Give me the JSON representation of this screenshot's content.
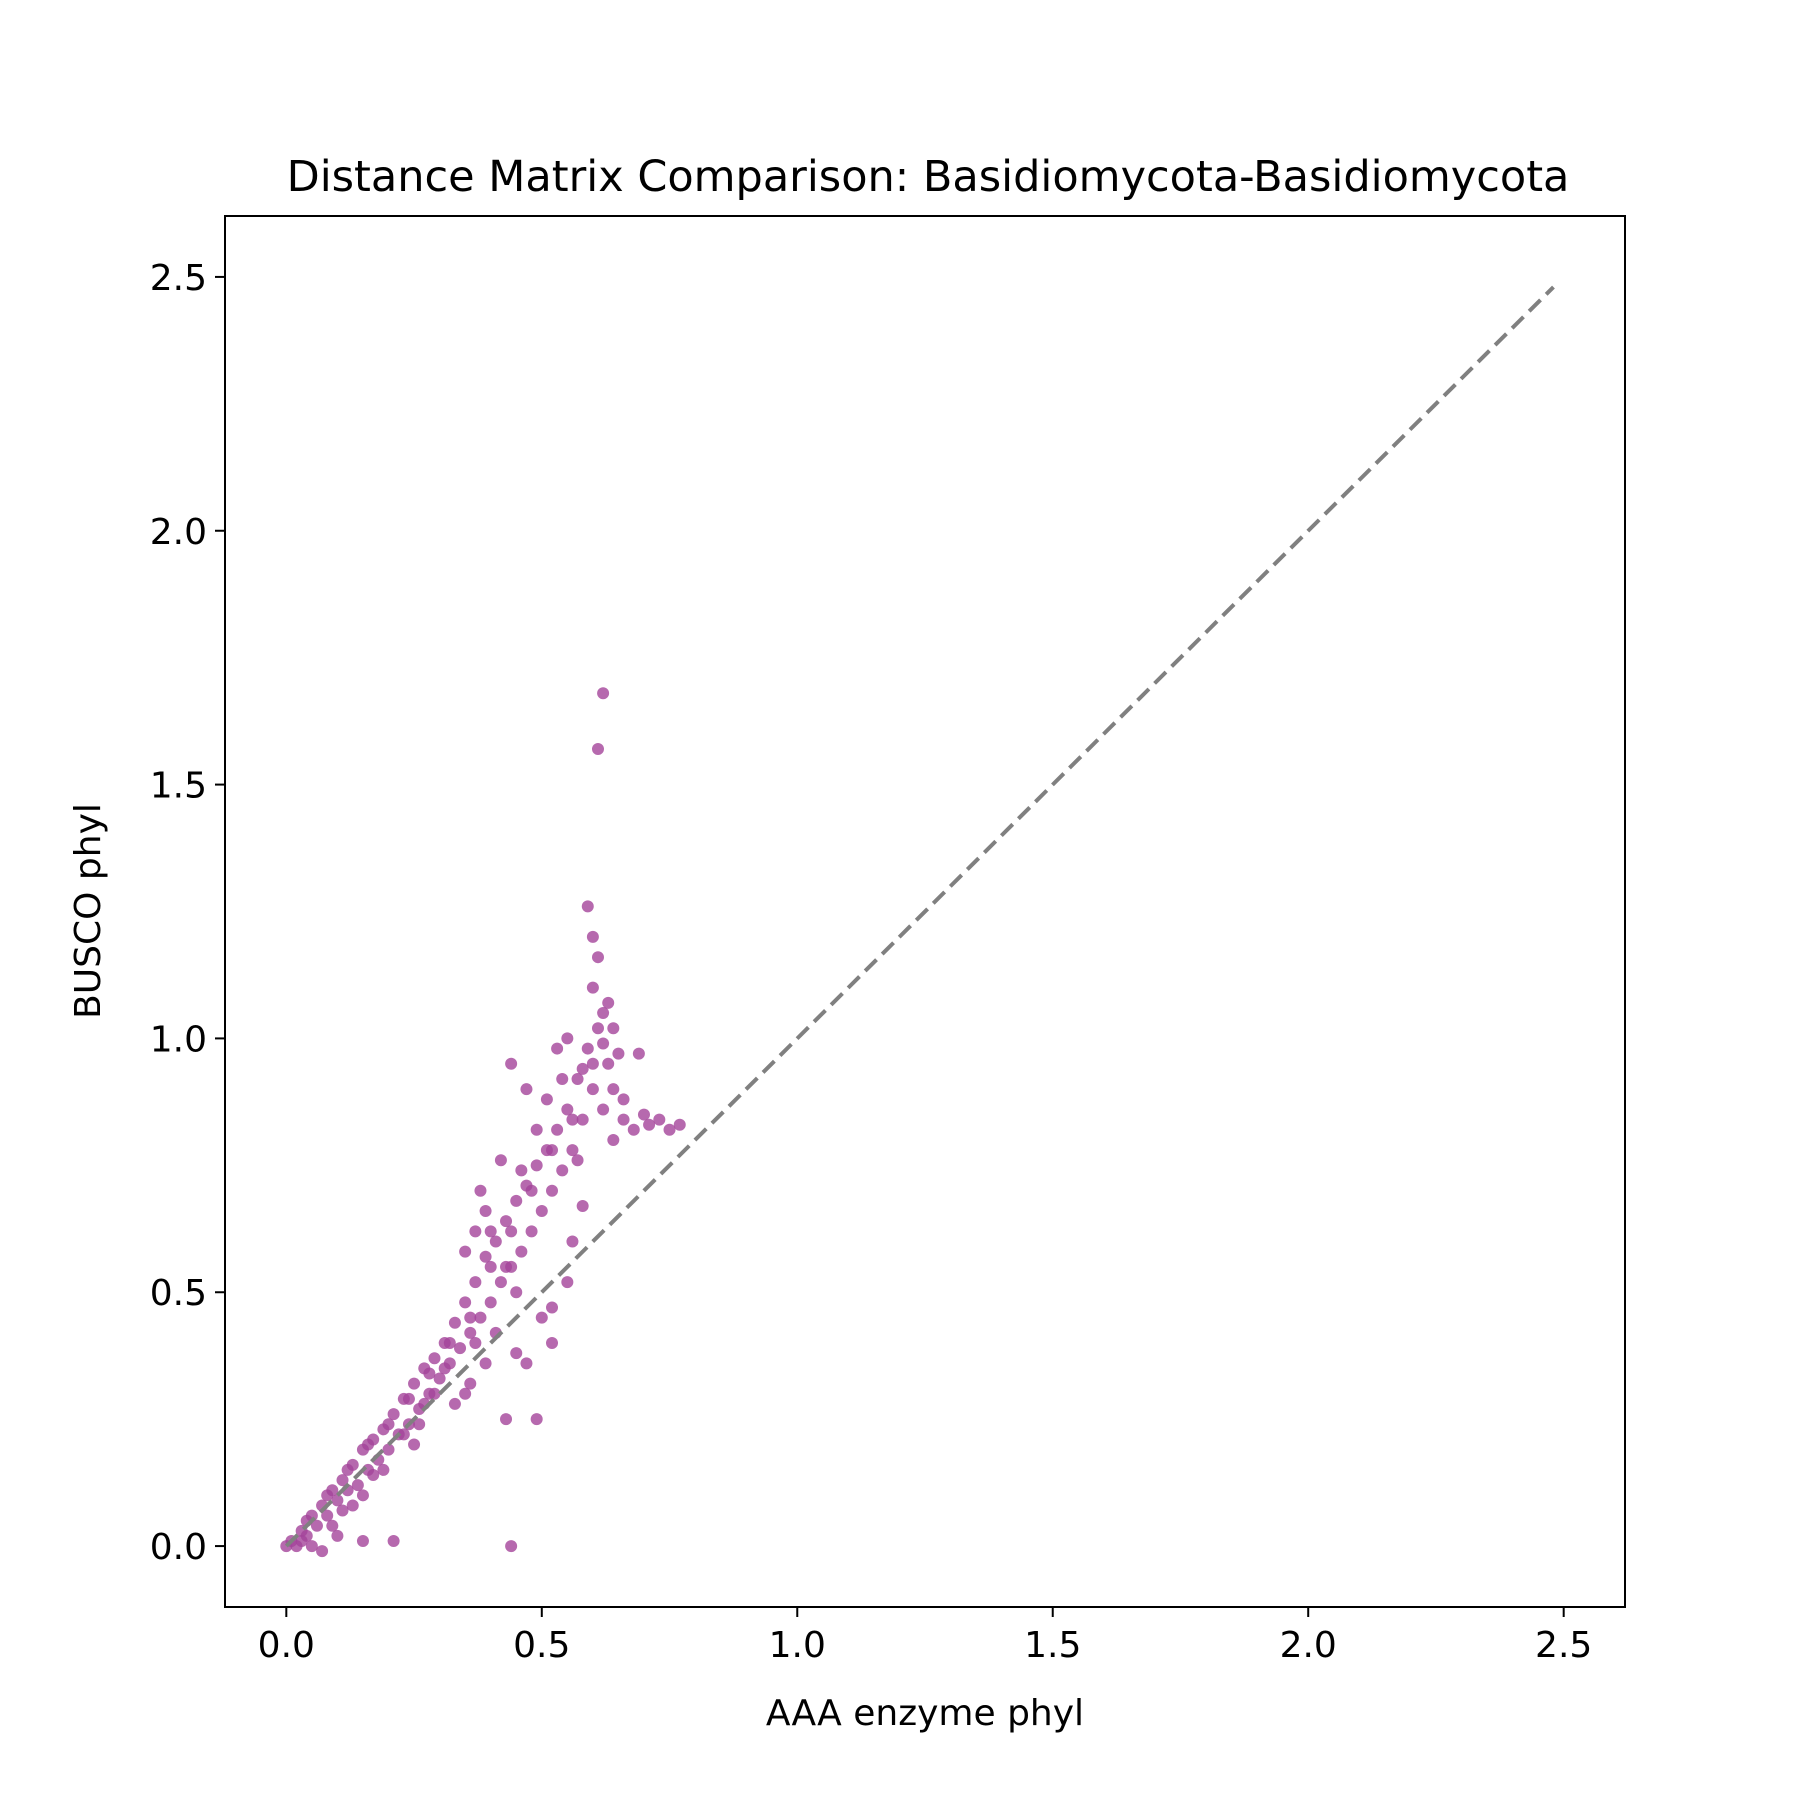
{
  "chart_data": {
    "type": "scatter",
    "title": "Distance Matrix Comparison: Basidiomycota-Basidiomycota",
    "xlabel": "AAA enzyme phyl",
    "ylabel": "BUSCO phyl",
    "xlim": [
      -0.12,
      2.62
    ],
    "ylim": [
      -0.12,
      2.62
    ],
    "xticks": [
      {
        "value": 0.0,
        "label": "0.0"
      },
      {
        "value": 0.5,
        "label": "0.5"
      },
      {
        "value": 1.0,
        "label": "1.0"
      },
      {
        "value": 1.5,
        "label": "1.5"
      },
      {
        "value": 2.0,
        "label": "2.0"
      },
      {
        "value": 2.5,
        "label": "2.5"
      }
    ],
    "yticks": [
      {
        "value": 0.0,
        "label": "0.0"
      },
      {
        "value": 0.5,
        "label": "0.5"
      },
      {
        "value": 1.0,
        "label": "1.0"
      },
      {
        "value": 1.5,
        "label": "1.5"
      },
      {
        "value": 2.0,
        "label": "2.0"
      },
      {
        "value": 2.5,
        "label": "2.5"
      }
    ],
    "grid": false,
    "point_color": "#a4449a",
    "reference_line": {
      "x": [
        0.0,
        2.48
      ],
      "y": [
        0.0,
        2.48
      ],
      "color": "#808080",
      "style": "dashed"
    },
    "series": [
      {
        "points": [
          [
            0.0,
            0.0
          ],
          [
            0.01,
            0.01
          ],
          [
            0.02,
            0.0
          ],
          [
            0.03,
            0.03
          ],
          [
            0.04,
            0.02
          ],
          [
            0.05,
            0.06
          ],
          [
            0.06,
            0.04
          ],
          [
            0.07,
            0.08
          ],
          [
            0.08,
            0.06
          ],
          [
            0.09,
            0.11
          ],
          [
            0.1,
            0.09
          ],
          [
            0.11,
            0.13
          ],
          [
            0.12,
            0.11
          ],
          [
            0.13,
            0.16
          ],
          [
            0.14,
            0.12
          ],
          [
            0.15,
            0.19
          ],
          [
            0.16,
            0.15
          ],
          [
            0.17,
            0.21
          ],
          [
            0.18,
            0.17
          ],
          [
            0.19,
            0.23
          ],
          [
            0.2,
            0.19
          ],
          [
            0.21,
            0.26
          ],
          [
            0.22,
            0.22
          ],
          [
            0.23,
            0.29
          ],
          [
            0.24,
            0.24
          ],
          [
            0.25,
            0.32
          ],
          [
            0.26,
            0.27
          ],
          [
            0.27,
            0.35
          ],
          [
            0.28,
            0.3
          ],
          [
            0.29,
            0.37
          ],
          [
            0.3,
            0.33
          ],
          [
            0.31,
            0.4
          ],
          [
            0.32,
            0.36
          ],
          [
            0.33,
            0.44
          ],
          [
            0.34,
            0.39
          ],
          [
            0.35,
            0.48
          ],
          [
            0.36,
            0.42
          ],
          [
            0.37,
            0.52
          ],
          [
            0.38,
            0.45
          ],
          [
            0.39,
            0.57
          ],
          [
            0.4,
            0.48
          ],
          [
            0.41,
            0.6
          ],
          [
            0.42,
            0.52
          ],
          [
            0.43,
            0.64
          ],
          [
            0.44,
            0.55
          ],
          [
            0.45,
            0.68
          ],
          [
            0.46,
            0.58
          ],
          [
            0.47,
            0.71
          ],
          [
            0.48,
            0.62
          ],
          [
            0.49,
            0.75
          ],
          [
            0.5,
            0.66
          ],
          [
            0.51,
            0.78
          ],
          [
            0.52,
            0.7
          ],
          [
            0.53,
            0.82
          ],
          [
            0.54,
            0.74
          ],
          [
            0.55,
            0.86
          ],
          [
            0.56,
            0.78
          ],
          [
            0.57,
            0.92
          ],
          [
            0.58,
            0.84
          ],
          [
            0.59,
            0.98
          ],
          [
            0.6,
            0.9
          ],
          [
            0.61,
            1.02
          ],
          [
            0.62,
            0.86
          ],
          [
            0.63,
            0.95
          ],
          [
            0.64,
            0.8
          ],
          [
            0.66,
            0.88
          ],
          [
            0.68,
            0.82
          ],
          [
            0.7,
            0.85
          ],
          [
            0.73,
            0.84
          ],
          [
            0.77,
            0.83
          ],
          [
            0.15,
            0.1
          ],
          [
            0.25,
            0.2
          ],
          [
            0.35,
            0.3
          ],
          [
            0.45,
            0.38
          ],
          [
            0.5,
            0.45
          ],
          [
            0.55,
            0.52
          ],
          [
            0.4,
            0.62
          ],
          [
            0.38,
            0.7
          ],
          [
            0.42,
            0.76
          ],
          [
            0.47,
            0.9
          ],
          [
            0.53,
            0.98
          ],
          [
            0.6,
            1.1
          ],
          [
            0.44,
            0.95
          ],
          [
            0.61,
            1.57
          ],
          [
            0.62,
            1.68
          ],
          [
            0.59,
            1.26
          ],
          [
            0.6,
            1.2
          ],
          [
            0.61,
            1.16
          ],
          [
            0.44,
            0.0
          ],
          [
            0.43,
            0.25
          ],
          [
            0.49,
            0.25
          ],
          [
            0.65,
            0.97
          ],
          [
            0.69,
            0.97
          ],
          [
            0.21,
            0.01
          ],
          [
            0.15,
            0.01
          ],
          [
            0.07,
            -0.01
          ],
          [
            0.1,
            0.02
          ],
          [
            0.05,
            0.0
          ],
          [
            0.52,
            0.47
          ],
          [
            0.56,
            0.6
          ],
          [
            0.58,
            0.67
          ],
          [
            0.57,
            0.76
          ],
          [
            0.55,
            1.0
          ],
          [
            0.64,
            1.02
          ],
          [
            0.63,
            1.07
          ],
          [
            0.31,
            0.35
          ],
          [
            0.37,
            0.4
          ],
          [
            0.41,
            0.42
          ],
          [
            0.47,
            0.36
          ],
          [
            0.52,
            0.4
          ],
          [
            0.26,
            0.24
          ],
          [
            0.19,
            0.15
          ],
          [
            0.13,
            0.08
          ],
          [
            0.09,
            0.04
          ],
          [
            0.33,
            0.28
          ],
          [
            0.36,
            0.32
          ],
          [
            0.39,
            0.36
          ],
          [
            0.45,
            0.5
          ],
          [
            0.43,
            0.55
          ],
          [
            0.37,
            0.62
          ],
          [
            0.35,
            0.58
          ],
          [
            0.39,
            0.66
          ],
          [
            0.46,
            0.74
          ],
          [
            0.49,
            0.82
          ],
          [
            0.51,
            0.88
          ],
          [
            0.54,
            0.92
          ],
          [
            0.58,
            0.94
          ],
          [
            0.62,
            0.99
          ],
          [
            0.66,
            0.84
          ],
          [
            0.71,
            0.83
          ],
          [
            0.75,
            0.82
          ],
          [
            0.29,
            0.3
          ],
          [
            0.27,
            0.28
          ],
          [
            0.23,
            0.22
          ],
          [
            0.17,
            0.14
          ],
          [
            0.11,
            0.07
          ],
          [
            0.03,
            0.01
          ],
          [
            0.04,
            0.05
          ],
          [
            0.08,
            0.1
          ],
          [
            0.12,
            0.15
          ],
          [
            0.16,
            0.2
          ],
          [
            0.2,
            0.24
          ],
          [
            0.24,
            0.29
          ],
          [
            0.28,
            0.34
          ],
          [
            0.32,
            0.4
          ],
          [
            0.36,
            0.45
          ],
          [
            0.4,
            0.55
          ],
          [
            0.44,
            0.62
          ],
          [
            0.48,
            0.7
          ],
          [
            0.52,
            0.78
          ],
          [
            0.56,
            0.84
          ],
          [
            0.6,
            0.95
          ],
          [
            0.62,
            1.05
          ],
          [
            0.64,
            0.9
          ]
        ]
      }
    ]
  }
}
